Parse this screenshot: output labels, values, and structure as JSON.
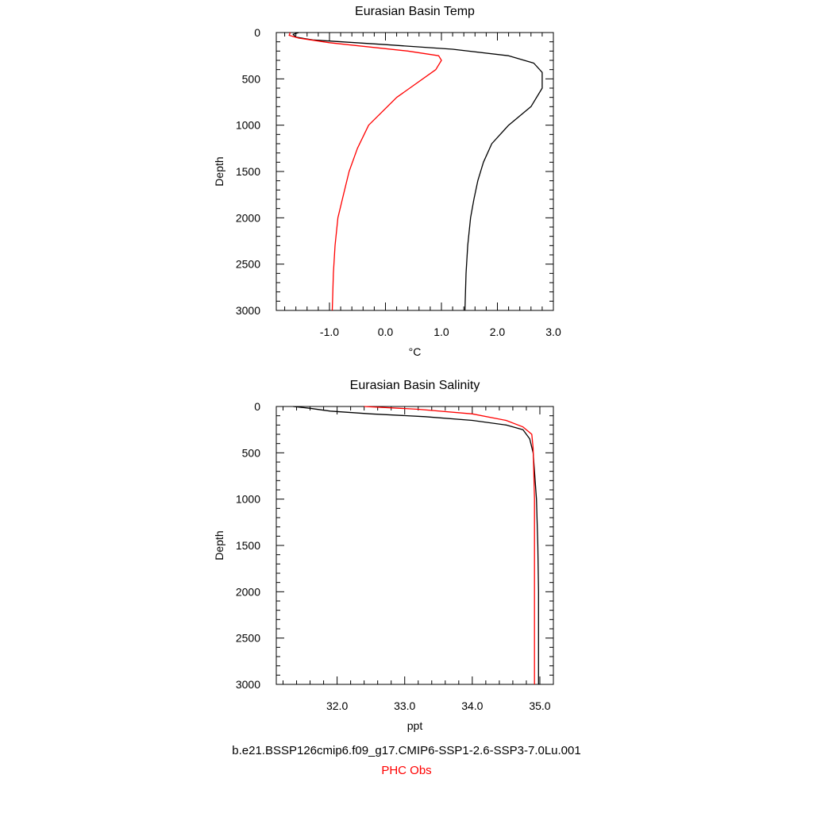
{
  "chart_data": [
    {
      "type": "line",
      "title": "Eurasian Basin Temp",
      "xlabel": "°C",
      "ylabel": "Depth",
      "xlim": [
        -1.95,
        3.0
      ],
      "ylim": [
        3000,
        0
      ],
      "xticks": [
        -1.0,
        0.0,
        1.0,
        2.0,
        3.0
      ],
      "xtick_labels": [
        "-1.0",
        "0.0",
        "1.0",
        "2.0",
        "3.0"
      ],
      "yticks": [
        0,
        500,
        1000,
        1500,
        2000,
        2500,
        3000
      ],
      "ytick_labels": [
        "0",
        "500",
        "1000",
        "1500",
        "2000",
        "2500",
        "3000"
      ],
      "grid": false,
      "series": [
        {
          "name": "b.e21.BSSP126cmip6.f09_g17.CMIP6-SSP1-2.6-SSP3-7.0Lu.001",
          "color": "#000000",
          "x": [
            -1.55,
            -1.65,
            -1.6,
            -1.3,
            0.0,
            1.2,
            2.2,
            2.65,
            2.8,
            2.8,
            2.6,
            2.2,
            1.9,
            1.75,
            1.65,
            1.58,
            1.52,
            1.47,
            1.44,
            1.42
          ],
          "y": [
            0,
            20,
            50,
            80,
            130,
            180,
            250,
            330,
            430,
            600,
            800,
            1000,
            1200,
            1400,
            1600,
            1800,
            2000,
            2300,
            2600,
            3000
          ]
        },
        {
          "name": "PHC Obs",
          "color": "#ff0000",
          "x": [
            -1.7,
            -1.72,
            -1.55,
            -1.0,
            0.4,
            0.95,
            1.0,
            0.9,
            0.2,
            -0.3,
            -0.5,
            -0.65,
            -0.75,
            -0.85,
            -0.9,
            -0.93,
            -0.95
          ],
          "y": [
            0,
            30,
            60,
            110,
            200,
            250,
            300,
            400,
            700,
            1000,
            1250,
            1500,
            1750,
            2000,
            2300,
            2600,
            3000
          ]
        }
      ]
    },
    {
      "type": "line",
      "title": "Eurasian Basin Salinity",
      "xlabel": "ppt",
      "ylabel": "Depth",
      "xlim": [
        31.1,
        35.2
      ],
      "ylim": [
        3000,
        0
      ],
      "xticks": [
        32.0,
        33.0,
        34.0,
        35.0
      ],
      "xtick_labels": [
        "32.0",
        "33.0",
        "34.0",
        "35.0"
      ],
      "yticks": [
        0,
        500,
        1000,
        1500,
        2000,
        2500,
        3000
      ],
      "ytick_labels": [
        "0",
        "500",
        "1000",
        "1500",
        "2000",
        "2500",
        "3000"
      ],
      "grid": false,
      "series": [
        {
          "name": "b.e21.BSSP126cmip6.f09_g17.CMIP6-SSP1-2.6-SSP3-7.0Lu.001",
          "color": "#000000",
          "x": [
            31.35,
            31.6,
            31.9,
            32.5,
            33.3,
            34.0,
            34.5,
            34.75,
            34.85,
            34.9,
            34.92,
            34.95,
            34.97,
            34.98,
            34.98,
            34.98
          ],
          "y": [
            0,
            20,
            50,
            80,
            110,
            150,
            200,
            250,
            350,
            500,
            700,
            1000,
            1500,
            2000,
            2500,
            3000
          ]
        },
        {
          "name": "PHC Obs",
          "color": "#ff0000",
          "x": [
            32.4,
            33.2,
            34.0,
            34.5,
            34.75,
            34.88,
            34.9,
            34.91,
            34.92,
            34.92,
            34.92,
            34.92,
            34.92
          ],
          "y": [
            0,
            30,
            80,
            150,
            220,
            300,
            450,
            700,
            1000,
            1500,
            2000,
            2500,
            3000
          ]
        }
      ]
    }
  ],
  "legend": {
    "model_label": "b.e21.BSSP126cmip6.f09_g17.CMIP6-SSP1-2.6-SSP3-7.0Lu.001",
    "model_color": "#000000",
    "obs_label": "PHC Obs",
    "obs_color": "#ff0000"
  }
}
